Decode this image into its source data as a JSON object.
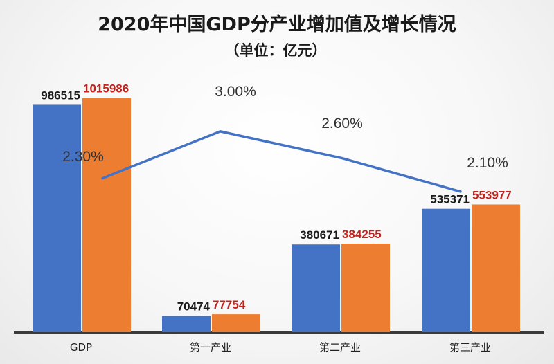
{
  "colors": {
    "bar_2019": "#4472c4",
    "bar_2020": "#ed7d31",
    "label_2020": "#c0221c",
    "line": "#4472c4",
    "axis": "#3a3a3a",
    "title": "#1a1a1a"
  },
  "chart_data": {
    "type": "bar",
    "title": "2020年中国GDP分产业增加值及增长情况",
    "subtitle": "（单位：亿元）",
    "categories": [
      "GDP",
      "第一产业",
      "第二产业",
      "第三产业"
    ],
    "series": [
      {
        "values": [
          986515,
          70474,
          380671,
          535371
        ]
      },
      {
        "values": [
          1015986,
          77754,
          384255,
          553977
        ]
      }
    ],
    "line_series": {
      "values": [
        2.3,
        3.0,
        2.6,
        2.1
      ],
      "labels": [
        "2.30%",
        "3.00%",
        "2.60%",
        "2.10%"
      ]
    },
    "ylim": [
      0,
      1150000
    ],
    "grid": false,
    "legend": "none"
  }
}
